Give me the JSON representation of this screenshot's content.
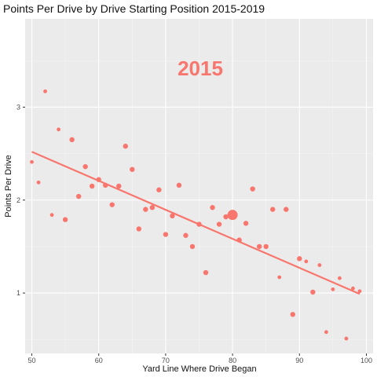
{
  "chart_data": {
    "type": "scatter",
    "title": "Points Per Drive by Drive Starting Position 2015-2019",
    "annotation": "2015",
    "xlabel": "Yard Line Where Drive Began",
    "ylabel": "Points Per Drive",
    "xlim": [
      49,
      101
    ],
    "ylim": [
      0.35,
      3.95
    ],
    "x_ticks": [
      50,
      60,
      70,
      80,
      90,
      100
    ],
    "y_ticks": [
      1,
      2,
      3
    ],
    "grid": true,
    "legend": "none",
    "colors": {
      "points": "#F8766D",
      "trend": "#F8766D",
      "panel": "#EBEBEB",
      "grid_major": "#FFFFFF",
      "grid_minor": "#F5F5F5"
    },
    "series": [
      {
        "points": [
          {
            "x": 50,
            "y": 2.41,
            "size": "small"
          },
          {
            "x": 51,
            "y": 2.19,
            "size": "small"
          },
          {
            "x": 52,
            "y": 3.17,
            "size": "small"
          },
          {
            "x": 53,
            "y": 1.84,
            "size": "small"
          },
          {
            "x": 54,
            "y": 2.76,
            "size": "small"
          },
          {
            "x": 55,
            "y": 1.79,
            "size": "medium"
          },
          {
            "x": 56,
            "y": 2.65,
            "size": "medium"
          },
          {
            "x": 57,
            "y": 2.04,
            "size": "medium"
          },
          {
            "x": 58,
            "y": 2.36,
            "size": "medium"
          },
          {
            "x": 59,
            "y": 2.15,
            "size": "medium"
          },
          {
            "x": 60,
            "y": 2.22,
            "size": "medium"
          },
          {
            "x": 61,
            "y": 2.16,
            "size": "medium"
          },
          {
            "x": 62,
            "y": 1.95,
            "size": "medium"
          },
          {
            "x": 63,
            "y": 2.15,
            "size": "medium"
          },
          {
            "x": 64,
            "y": 2.58,
            "size": "medium"
          },
          {
            "x": 65,
            "y": 2.33,
            "size": "medium"
          },
          {
            "x": 66,
            "y": 1.69,
            "size": "medium"
          },
          {
            "x": 67,
            "y": 1.9,
            "size": "medium"
          },
          {
            "x": 68,
            "y": 1.92,
            "size": "medium"
          },
          {
            "x": 69,
            "y": 2.11,
            "size": "medium"
          },
          {
            "x": 70,
            "y": 1.63,
            "size": "medium"
          },
          {
            "x": 71,
            "y": 1.83,
            "size": "medium"
          },
          {
            "x": 72,
            "y": 2.16,
            "size": "medium"
          },
          {
            "x": 73,
            "y": 1.62,
            "size": "medium"
          },
          {
            "x": 74,
            "y": 1.5,
            "size": "medium"
          },
          {
            "x": 75,
            "y": 1.74,
            "size": "medium"
          },
          {
            "x": 76,
            "y": 1.22,
            "size": "medium"
          },
          {
            "x": 77,
            "y": 1.92,
            "size": "medium"
          },
          {
            "x": 78,
            "y": 1.74,
            "size": "medium"
          },
          {
            "x": 79,
            "y": 1.82,
            "size": "medium"
          },
          {
            "x": 80,
            "y": 1.84,
            "size": "large"
          },
          {
            "x": 81,
            "y": 1.57,
            "size": "medium"
          },
          {
            "x": 82,
            "y": 1.75,
            "size": "medium"
          },
          {
            "x": 83,
            "y": 2.12,
            "size": "medium"
          },
          {
            "x": 84,
            "y": 1.5,
            "size": "medium"
          },
          {
            "x": 85,
            "y": 1.5,
            "size": "medium"
          },
          {
            "x": 86,
            "y": 1.9,
            "size": "medium"
          },
          {
            "x": 87,
            "y": 1.17,
            "size": "small"
          },
          {
            "x": 88,
            "y": 1.9,
            "size": "medium"
          },
          {
            "x": 89,
            "y": 0.77,
            "size": "medium"
          },
          {
            "x": 90,
            "y": 1.37,
            "size": "medium"
          },
          {
            "x": 91,
            "y": 1.34,
            "size": "small"
          },
          {
            "x": 92,
            "y": 1.01,
            "size": "medium"
          },
          {
            "x": 93,
            "y": 1.3,
            "size": "small"
          },
          {
            "x": 94,
            "y": 0.58,
            "size": "small"
          },
          {
            "x": 95,
            "y": 1.04,
            "size": "small"
          },
          {
            "x": 96,
            "y": 1.16,
            "size": "small"
          },
          {
            "x": 97,
            "y": 0.51,
            "size": "small"
          },
          {
            "x": 98,
            "y": 1.05,
            "size": "small"
          },
          {
            "x": 99,
            "y": 1.02,
            "size": "small"
          }
        ]
      }
    ],
    "trend_line": {
      "x1": 50,
      "y1": 2.52,
      "x2": 99,
      "y2": 0.99
    }
  }
}
